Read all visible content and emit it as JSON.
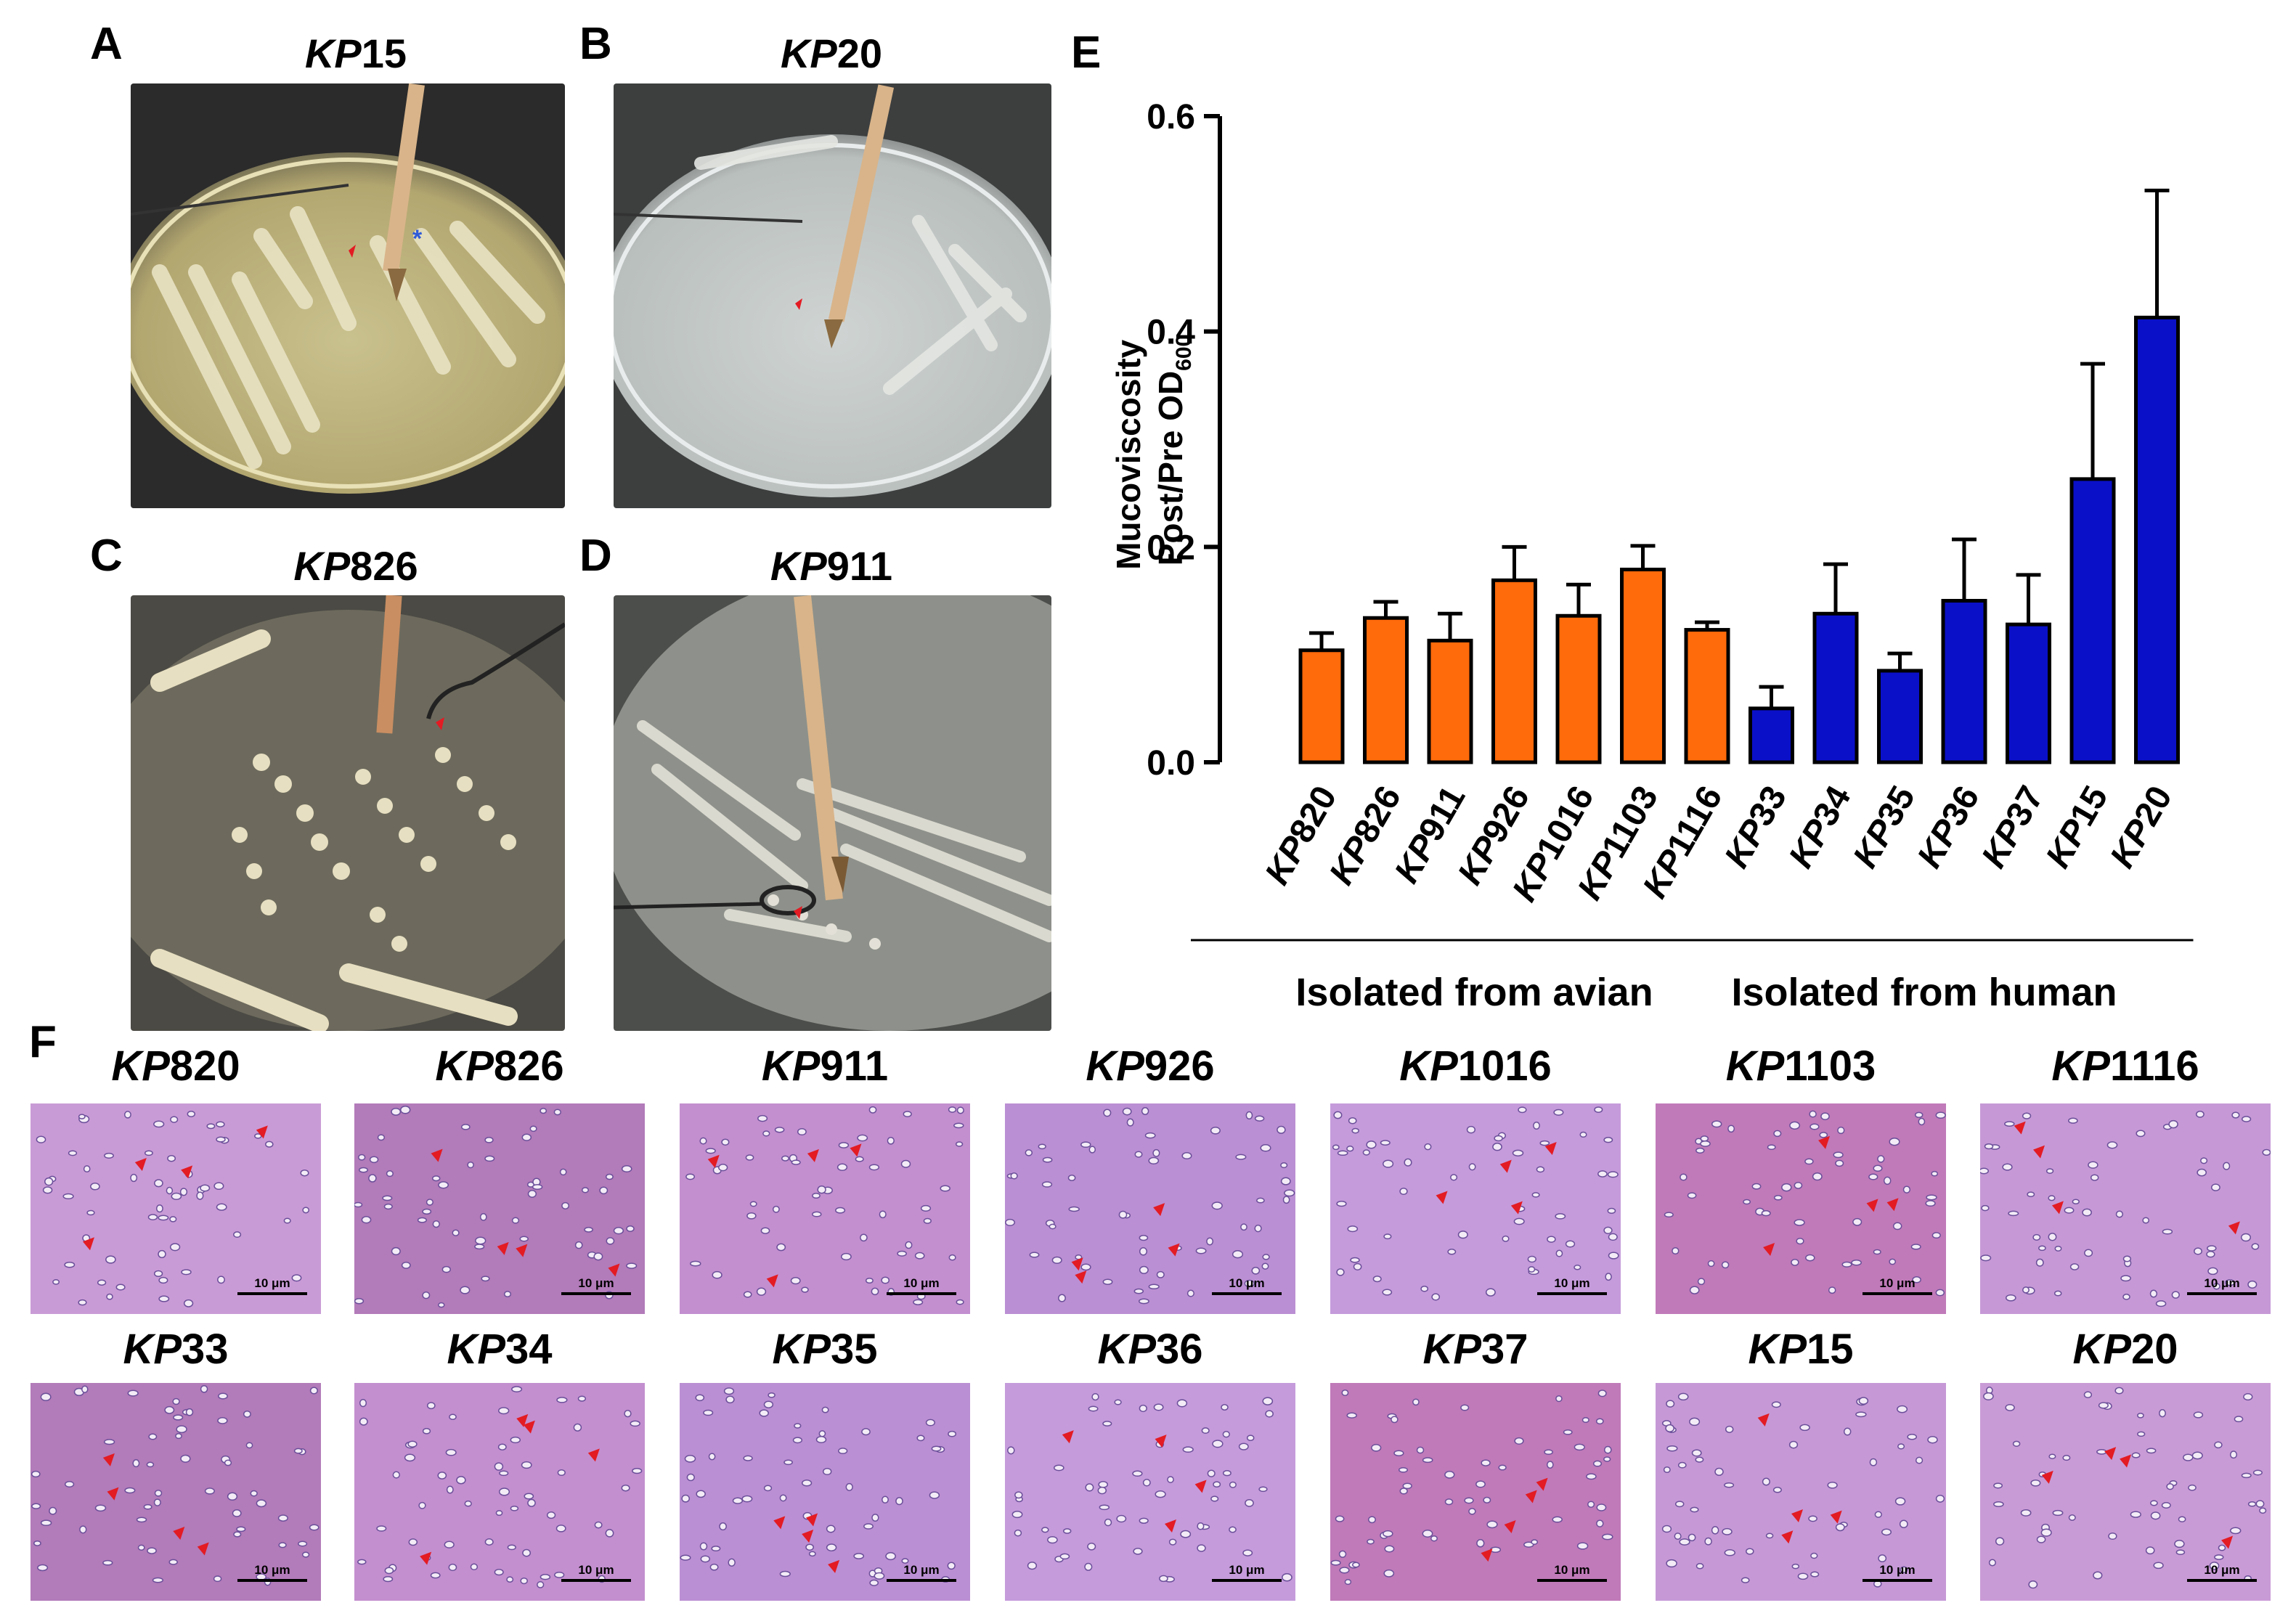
{
  "panels": {
    "A": {
      "letter": "A",
      "prefix": "KP",
      "suffix": "15"
    },
    "B": {
      "letter": "B",
      "prefix": "KP",
      "suffix": "20"
    },
    "C": {
      "letter": "C",
      "prefix": "KP",
      "suffix": "826"
    },
    "D": {
      "letter": "D",
      "prefix": "KP",
      "suffix": "911"
    },
    "E": {
      "letter": "E"
    },
    "F": {
      "letter": "F"
    }
  },
  "chart_data": {
    "type": "bar",
    "ylabel_line1": "Mucoviscosity",
    "ylabel_line2": "Post/Pre OD",
    "ylabel_sub": "600",
    "ylim": [
      0,
      0.6
    ],
    "yticks": [
      "0.0",
      "0.2",
      "0.4",
      "0.6"
    ],
    "categories": [
      {
        "prefix": "KP",
        "suffix": "820"
      },
      {
        "prefix": "KP",
        "suffix": "826"
      },
      {
        "prefix": "KP",
        "suffix": "911"
      },
      {
        "prefix": "KP",
        "suffix": "926"
      },
      {
        "prefix": "KP",
        "suffix": "1016"
      },
      {
        "prefix": "KP",
        "suffix": "1103"
      },
      {
        "prefix": "KP",
        "suffix": "1116"
      },
      {
        "prefix": "KP",
        "suffix": "33"
      },
      {
        "prefix": "KP",
        "suffix": "34"
      },
      {
        "prefix": "KP",
        "suffix": "35"
      },
      {
        "prefix": "KP",
        "suffix": "36"
      },
      {
        "prefix": "KP",
        "suffix": "37"
      },
      {
        "prefix": "KP",
        "suffix": "15"
      },
      {
        "prefix": "KP",
        "suffix": "20"
      }
    ],
    "values": [
      0.104,
      0.134,
      0.113,
      0.169,
      0.136,
      0.179,
      0.123,
      0.05,
      0.138,
      0.085,
      0.15,
      0.128,
      0.263,
      0.413
    ],
    "errors": [
      0.016,
      0.015,
      0.025,
      0.031,
      0.029,
      0.022,
      0.007,
      0.02,
      0.046,
      0.016,
      0.057,
      0.046,
      0.107,
      0.118
    ],
    "groups": [
      {
        "label": "Isolated from avian",
        "start": 0,
        "end": 6,
        "color": "#ff6a0a"
      },
      {
        "label": "Isolated from human",
        "start": 7,
        "end": 13,
        "color": "#0a10c8"
      }
    ]
  },
  "micrographs": {
    "scale_label": "10 μm",
    "row1": [
      {
        "prefix": "KP",
        "suffix": "820"
      },
      {
        "prefix": "KP",
        "suffix": "826"
      },
      {
        "prefix": "KP",
        "suffix": "911"
      },
      {
        "prefix": "KP",
        "suffix": "926"
      },
      {
        "prefix": "KP",
        "suffix": "1016"
      },
      {
        "prefix": "KP",
        "suffix": "1103"
      },
      {
        "prefix": "KP",
        "suffix": "1116"
      }
    ],
    "row2": [
      {
        "prefix": "KP",
        "suffix": "33"
      },
      {
        "prefix": "KP",
        "suffix": "34"
      },
      {
        "prefix": "KP",
        "suffix": "35"
      },
      {
        "prefix": "KP",
        "suffix": "36"
      },
      {
        "prefix": "KP",
        "suffix": "37"
      },
      {
        "prefix": "KP",
        "suffix": "15"
      },
      {
        "prefix": "KP",
        "suffix": "20"
      }
    ]
  }
}
